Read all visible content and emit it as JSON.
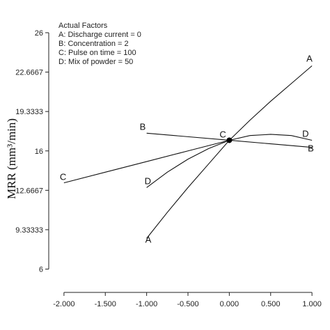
{
  "chart_data": {
    "type": "line",
    "title": "",
    "xlabel": "",
    "ylabel": "MRR (mm³/min)",
    "xlim": [
      -2.1,
      1.1
    ],
    "ylim": [
      4.5,
      27
    ],
    "x_ticks": [
      "-2.000",
      "-1.500",
      "-1.000",
      "-0.500",
      "0.000",
      "0.500",
      "1.000"
    ],
    "x_tick_values": [
      -2,
      -1.5,
      -1,
      -0.5,
      0,
      0.5,
      1
    ],
    "y_ticks": [
      "6",
      "9.33333",
      "12.6667",
      "16",
      "19.3333",
      "22.6667",
      "26"
    ],
    "y_tick_values": [
      6,
      9.33333,
      12.6667,
      16,
      19.3333,
      22.6667,
      26
    ],
    "legend": {
      "title": "Actual Factors",
      "entries": [
        "A: Discharge current = 0",
        "B: Concentration = 2",
        "C: Pulse on time = 100",
        "D: Mix of powder = 50"
      ]
    },
    "center_point": {
      "label": "C",
      "x": 0,
      "y": 16.9
    },
    "series": [
      {
        "name": "A",
        "x": [
          -1,
          -0.75,
          -0.5,
          -0.25,
          0,
          0.25,
          0.5,
          0.75,
          1
        ],
        "y": [
          8.6,
          10.8,
          12.9,
          14.9,
          16.9,
          18.6,
          20.2,
          21.7,
          23.2
        ]
      },
      {
        "name": "B",
        "x": [
          -1,
          -0.5,
          0,
          0.5,
          1
        ],
        "y": [
          17.5,
          17.2,
          16.9,
          16.6,
          16.3
        ]
      },
      {
        "name": "C",
        "x": [
          -2,
          -1.5,
          -1,
          -0.5,
          0
        ],
        "y": [
          13.3,
          14.2,
          15.1,
          16.0,
          16.9
        ]
      },
      {
        "name": "D",
        "x": [
          -1,
          -0.75,
          -0.5,
          -0.25,
          0,
          0.25,
          0.5,
          0.75,
          1
        ],
        "y": [
          12.9,
          14.2,
          15.3,
          16.2,
          16.9,
          17.3,
          17.4,
          17.3,
          16.9
        ]
      }
    ],
    "grid": false,
    "legend_placement": "top-left"
  }
}
